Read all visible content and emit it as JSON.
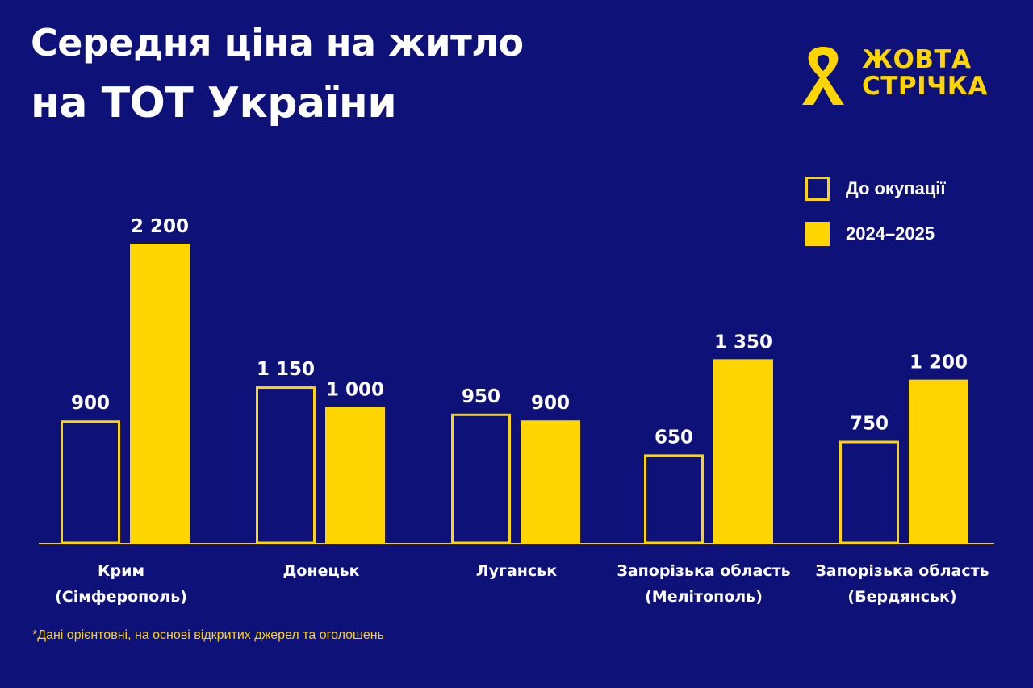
{
  "title": {
    "line1": "Середня ціна на житло",
    "line2": "на ТОТ України"
  },
  "logo": {
    "line1": "ЖОВТА",
    "line2": "СТРІЧКА",
    "icon": "ribbon-icon"
  },
  "footnote": "*Дані орієнтовні, на основі відкритих джерел та оголошень",
  "colors": {
    "background": "#0d1178",
    "accent": "#ffd500",
    "text": "#ffffff"
  },
  "chart_data": {
    "type": "bar",
    "title": "Середня ціна на житло на ТОТ України",
    "xlabel": "",
    "ylabel": "",
    "ylim": [
      0,
      2200
    ],
    "grid": false,
    "legend_position": "top-right",
    "categories": [
      [
        "Крим",
        "(Сімферополь)"
      ],
      [
        "Донецьк"
      ],
      [
        "Луганськ"
      ],
      [
        "Запорізька область",
        "(Мелітополь)"
      ],
      [
        "Запорізька область",
        "(Бердянськ)"
      ]
    ],
    "series": [
      {
        "name": "До окупації",
        "style": "outline",
        "values": [
          900,
          1150,
          950,
          650,
          750
        ],
        "labels": [
          "900",
          "1 150",
          "950",
          "650",
          "750"
        ]
      },
      {
        "name": "2024–2025",
        "style": "filled",
        "values": [
          2200,
          1000,
          900,
          1350,
          1200
        ],
        "labels": [
          "2 200",
          "1 000",
          "900",
          "1 350",
          "1 200"
        ]
      }
    ]
  }
}
